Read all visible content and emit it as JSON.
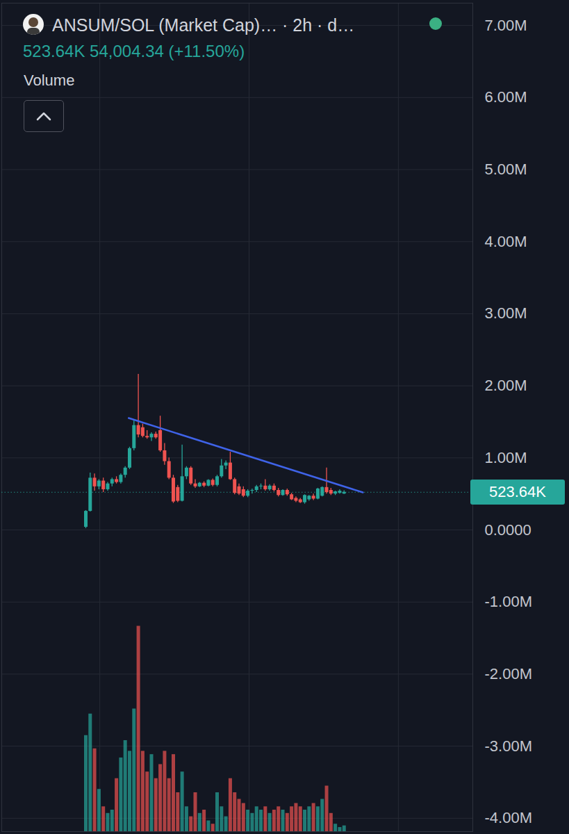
{
  "chart_data": {
    "type": "candlestick",
    "title": "ANSUM/SOL (Market Cap)… · 2h · d…",
    "subtitle": "523.64K 54,004.34 (+11.50%)",
    "volume_label": "Volume",
    "x": [
      0,
      1,
      2,
      3,
      4,
      5,
      6,
      7,
      8,
      9,
      10,
      11,
      12,
      13,
      14,
      15,
      16,
      17,
      18,
      19,
      20,
      21,
      22,
      23,
      24,
      25,
      26,
      27,
      28,
      29,
      30,
      31,
      32,
      33,
      34,
      35,
      36,
      37,
      38,
      39,
      40,
      41,
      42,
      43,
      44,
      45,
      46,
      47,
      48,
      49,
      50,
      51,
      52,
      53,
      54,
      55,
      56,
      57,
      58,
      59
    ],
    "open": [
      39000,
      260000,
      720000,
      600000,
      680000,
      560000,
      640000,
      700000,
      660000,
      760000,
      860000,
      1130000,
      1450000,
      1420000,
      1300000,
      1280000,
      1330000,
      1380000,
      1100000,
      950000,
      720000,
      590000,
      400000,
      740000,
      860000,
      640000,
      600000,
      650000,
      610000,
      690000,
      620000,
      740000,
      890000,
      930000,
      700000,
      600000,
      560000,
      470000,
      540000,
      550000,
      600000,
      610000,
      560000,
      610000,
      550000,
      480000,
      550000,
      490000,
      440000,
      420000,
      380000,
      420000,
      470000,
      430000,
      470000,
      590000,
      550000,
      500000,
      510000,
      500000
    ],
    "high": [
      270000,
      790000,
      780000,
      700000,
      720000,
      660000,
      720000,
      740000,
      780000,
      880000,
      1150000,
      1520000,
      2160000,
      1470000,
      1380000,
      1350000,
      1360000,
      1580000,
      1200000,
      1000000,
      760000,
      620000,
      1180000,
      880000,
      880000,
      700000,
      660000,
      670000,
      700000,
      710000,
      760000,
      980000,
      960000,
      1080000,
      720000,
      640000,
      600000,
      560000,
      570000,
      620000,
      640000,
      700000,
      630000,
      640000,
      580000,
      560000,
      570000,
      510000,
      460000,
      440000,
      490000,
      480000,
      500000,
      580000,
      600000,
      860000,
      580000,
      540000,
      560000,
      545000
    ],
    "low": [
      20000,
      250000,
      540000,
      560000,
      520000,
      540000,
      600000,
      640000,
      640000,
      720000,
      840000,
      1100000,
      1280000,
      1280000,
      1260000,
      1230000,
      1260000,
      1080000,
      900000,
      700000,
      370000,
      380000,
      390000,
      700000,
      620000,
      580000,
      590000,
      590000,
      600000,
      600000,
      600000,
      720000,
      840000,
      690000,
      490000,
      480000,
      450000,
      450000,
      500000,
      520000,
      560000,
      540000,
      540000,
      530000,
      460000,
      470000,
      470000,
      410000,
      380000,
      370000,
      360000,
      400000,
      410000,
      420000,
      460000,
      500000,
      480000,
      480000,
      500000,
      495000
    ],
    "close": [
      260000,
      720000,
      600000,
      680000,
      560000,
      640000,
      700000,
      660000,
      760000,
      860000,
      1130000,
      1450000,
      1320000,
      1300000,
      1280000,
      1330000,
      1280000,
      1100000,
      950000,
      720000,
      390000,
      400000,
      740000,
      860000,
      640000,
      600000,
      650000,
      610000,
      690000,
      620000,
      740000,
      890000,
      930000,
      700000,
      510000,
      500000,
      470000,
      540000,
      550000,
      600000,
      610000,
      560000,
      610000,
      550000,
      480000,
      550000,
      490000,
      420000,
      400000,
      380000,
      480000,
      470000,
      430000,
      570000,
      590000,
      520000,
      500000,
      530000,
      540000,
      523640
    ],
    "color": {
      "up": "#26a69a",
      "down": "#ef5350"
    },
    "volume": {
      "axis": "y2",
      "values": [
        11.6,
        14.2,
        10.0,
        5.1,
        3.0,
        2.2,
        2.6,
        6.4,
        8.9,
        11.0,
        9.7,
        14.8,
        24.8,
        9.7,
        7.2,
        9.3,
        6.4,
        8.1,
        9.7,
        6.4,
        9.3,
        4.7,
        7.2,
        3.0,
        1.8,
        4.7,
        2.2,
        2.6,
        1.3,
        0.9,
        4.7,
        3.0,
        1.8,
        6.4,
        4.7,
        3.9,
        3.4,
        2.6,
        2.2,
        3.0,
        2.6,
        3.0,
        2.2,
        2.6,
        3.0,
        2.6,
        2.2,
        3.0,
        3.4,
        3.0,
        2.6,
        3.0,
        3.4,
        3.0,
        3.9,
        5.5,
        2.2,
        0.9,
        0.5,
        0.7
      ]
    },
    "y2lim": [
      0,
      100
    ],
    "xlim": [
      -19.2,
      88.4
    ],
    "xticks": [
      3.2,
      37.3,
      71.4
    ],
    "ylim": [
      -4185000,
      7310000
    ],
    "yticks": [
      {
        "value": 7000000,
        "label": "7.00M"
      },
      {
        "value": 6000000,
        "label": "6.00M"
      },
      {
        "value": 5000000,
        "label": "5.00M"
      },
      {
        "value": 4000000,
        "label": "4.00M"
      },
      {
        "value": 3000000,
        "label": "3.00M"
      },
      {
        "value": 2000000,
        "label": "2.00M"
      },
      {
        "value": 1000000,
        "label": "1.00M"
      },
      {
        "value": 0,
        "label": "0.0000"
      },
      {
        "value": -1000000,
        "label": "-1.00M"
      },
      {
        "value": -2000000,
        "label": "-2.00M"
      },
      {
        "value": -3000000,
        "label": "-3.00M"
      },
      {
        "value": -4000000,
        "label": "-4.00M"
      }
    ],
    "last_value": {
      "value": 523640,
      "label": "523.64K"
    },
    "trendline": {
      "x": [
        9.8,
        63.3
      ],
      "values": [
        1553000,
        521000
      ],
      "color": "#3f63e8"
    },
    "grid": true,
    "tick_labels": "y"
  }
}
